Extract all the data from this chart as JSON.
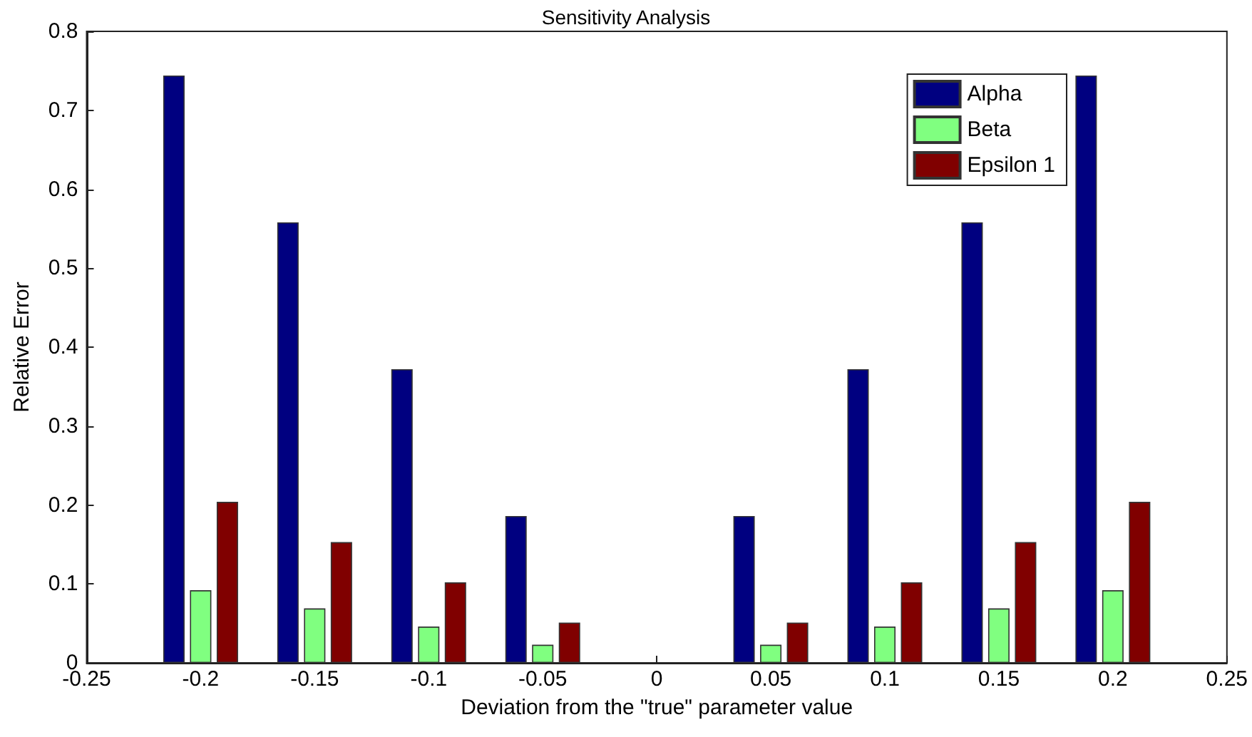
{
  "chart_data": {
    "type": "bar",
    "title": "Sensitivity Analysis",
    "xlabel": "Deviation from the \"true\" parameter value",
    "ylabel": "Relative Error",
    "x": [
      -0.2,
      -0.15,
      -0.1,
      -0.05,
      0,
      0.05,
      0.1,
      0.15,
      0.2
    ],
    "series": [
      {
        "name": "Alpha",
        "color": "#000080",
        "values": [
          0.744,
          0.558,
          0.372,
          0.186,
          0,
          0.186,
          0.372,
          0.558,
          0.744
        ]
      },
      {
        "name": "Beta",
        "color": "#80ff80",
        "values": [
          0.092,
          0.069,
          0.046,
          0.023,
          0,
          0.023,
          0.046,
          0.069,
          0.092
        ]
      },
      {
        "name": "Epsilon 1",
        "color": "#800000",
        "values": [
          0.204,
          0.153,
          0.102,
          0.051,
          0,
          0.051,
          0.102,
          0.153,
          0.204
        ]
      }
    ],
    "xlim": [
      -0.25,
      0.25
    ],
    "xticks": [
      -0.25,
      -0.2,
      -0.15,
      -0.1,
      -0.05,
      0,
      0.05,
      0.1,
      0.15,
      0.2,
      0.25
    ],
    "ylim": [
      0,
      0.8
    ],
    "yticks": [
      0,
      0.1,
      0.2,
      0.3,
      0.4,
      0.5,
      0.6,
      0.7,
      0.8
    ],
    "legend": "top right",
    "grid": false
  }
}
